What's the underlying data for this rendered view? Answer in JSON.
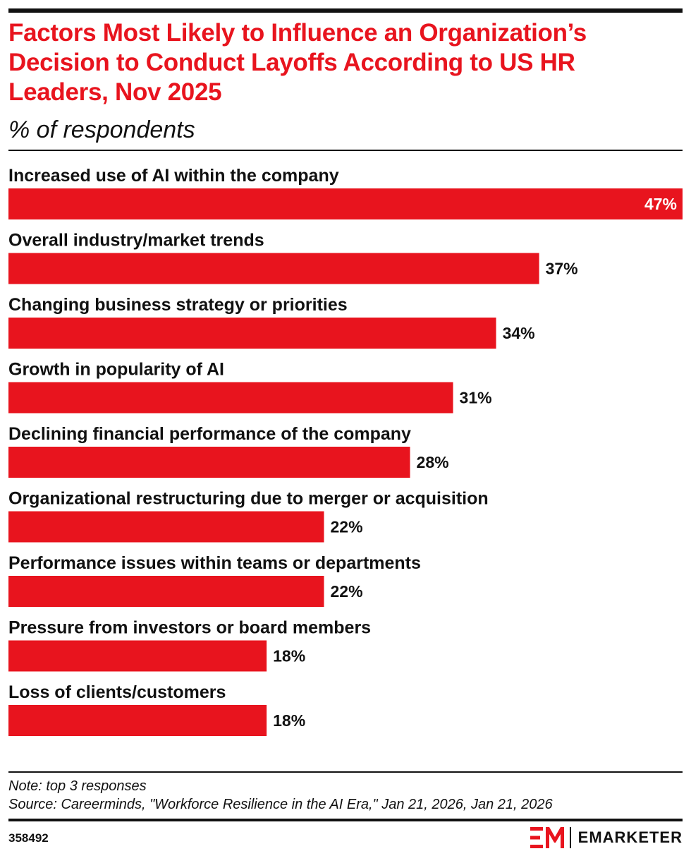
{
  "header": {
    "title": "Factors Most Likely to Influence an Organization’s Decision to Conduct Layoffs According to US HR Leaders, Nov 2025",
    "subtitle": "% of respondents"
  },
  "chart_data": {
    "type": "bar",
    "orientation": "horizontal",
    "title": "Factors Most Likely to Influence an Organization’s Decision to Conduct Layoffs According to US HR Leaders, Nov 2025",
    "subtitle": "% of respondents",
    "categories": [
      "Increased use of AI within the company",
      "Overall industry/market trends",
      "Changing business strategy or priorities",
      "Growth in popularity of AI",
      "Declining financial performance of the company",
      "Organizational restructuring due to merger or acquisition",
      "Performance issues within teams or departments",
      "Pressure from investors or board members",
      "Loss of clients/customers"
    ],
    "values": [
      47,
      37,
      34,
      31,
      28,
      22,
      22,
      18,
      18
    ],
    "value_labels": [
      "47%",
      "37%",
      "34%",
      "31%",
      "28%",
      "22%",
      "22%",
      "18%",
      "18%"
    ],
    "xlim": [
      0,
      47
    ],
    "grid": false,
    "legend": "none",
    "bar_color": "#e8141e"
  },
  "footer": {
    "note": "Note: top 3 responses",
    "source": "Source: Careerminds, \"Workforce Resilience in the AI Era,\" Jan 21, 2026, Jan 21, 2026",
    "chart_id": "358492",
    "brand": "EMARKETER",
    "brand_icon": "em-logo-icon",
    "brand_color": "#e8141e"
  }
}
